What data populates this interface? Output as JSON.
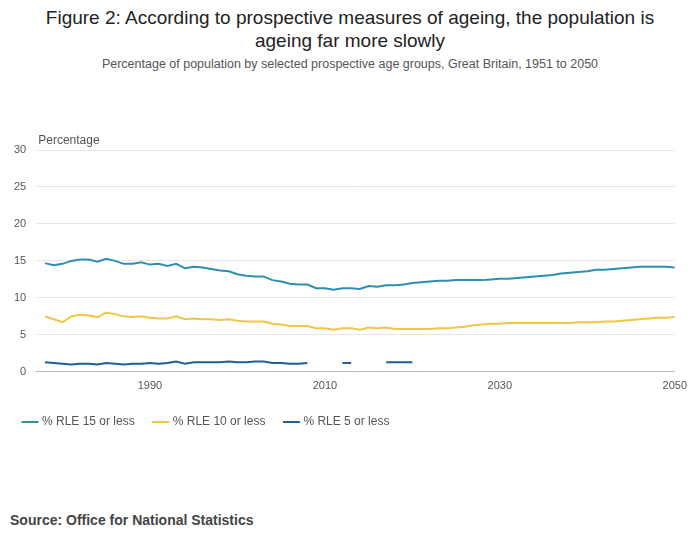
{
  "chart_data": {
    "type": "line",
    "title": "Figure 2: According to prospective measures of ageing, the population is ageing far more slowly",
    "subtitle": "Percentage of population by selected prospective age groups, Great Britain, 1951 to 2050",
    "ylabel": "Percentage",
    "source": "Source: Office for National Statistics",
    "x": [
      1978,
      1979,
      1980,
      1981,
      1982,
      1983,
      1984,
      1985,
      1986,
      1987,
      1988,
      1989,
      1990,
      1991,
      1992,
      1993,
      1994,
      1995,
      1996,
      1997,
      1998,
      1999,
      2000,
      2001,
      2002,
      2003,
      2004,
      2005,
      2006,
      2007,
      2008,
      2009,
      2010,
      2011,
      2012,
      2013,
      2014,
      2015,
      2016,
      2017,
      2018,
      2019,
      2020,
      2021,
      2022,
      2023,
      2024,
      2025,
      2026,
      2027,
      2028,
      2029,
      2030,
      2031,
      2032,
      2033,
      2034,
      2035,
      2036,
      2037,
      2038,
      2039,
      2040,
      2041,
      2042,
      2043,
      2044,
      2045,
      2046,
      2047,
      2048,
      2049,
      2050
    ],
    "series": [
      {
        "name": "% RLE 15 or less",
        "color": "#2e8fae",
        "values": [
          14.7,
          14.4,
          14.6,
          15.0,
          15.2,
          15.2,
          14.9,
          15.3,
          15.0,
          14.6,
          14.6,
          14.8,
          14.5,
          14.6,
          14.3,
          14.6,
          14.0,
          14.2,
          14.1,
          13.9,
          13.7,
          13.6,
          13.2,
          13.0,
          12.9,
          12.9,
          12.4,
          12.2,
          11.9,
          11.8,
          11.8,
          11.3,
          11.3,
          11.1,
          11.3,
          11.3,
          11.2,
          11.6,
          11.5,
          11.7,
          11.7,
          11.8,
          12.0,
          12.1,
          12.2,
          12.3,
          12.3,
          12.4,
          12.4,
          12.4,
          12.4,
          12.5,
          12.6,
          12.6,
          12.7,
          12.8,
          12.9,
          13.0,
          13.1,
          13.3,
          13.4,
          13.5,
          13.6,
          13.8,
          13.8,
          13.9,
          14.0,
          14.1,
          14.2,
          14.2,
          14.2,
          14.2,
          14.1
        ]
      },
      {
        "name": "% RLE 10 or less",
        "color": "#f1c644",
        "values": [
          7.5,
          7.1,
          6.7,
          7.5,
          7.7,
          7.6,
          7.4,
          8.0,
          7.8,
          7.5,
          7.4,
          7.5,
          7.3,
          7.2,
          7.2,
          7.5,
          7.1,
          7.2,
          7.1,
          7.1,
          7.0,
          7.1,
          6.9,
          6.8,
          6.8,
          6.8,
          6.5,
          6.4,
          6.2,
          6.2,
          6.2,
          5.9,
          5.9,
          5.7,
          5.9,
          5.9,
          5.7,
          6.0,
          5.9,
          6.0,
          5.8,
          5.8,
          5.8,
          5.8,
          5.8,
          5.9,
          5.9,
          6.0,
          6.1,
          6.3,
          6.4,
          6.5,
          6.5,
          6.6,
          6.6,
          6.6,
          6.6,
          6.6,
          6.6,
          6.6,
          6.6,
          6.7,
          6.7,
          6.7,
          6.8,
          6.8,
          6.9,
          7.0,
          7.1,
          7.2,
          7.3,
          7.3,
          7.4
        ]
      },
      {
        "name": "% RLE 5 or less",
        "color": "#206095",
        "values": [
          1.3,
          1.2,
          1.1,
          1.0,
          1.1,
          1.1,
          1.0,
          1.2,
          1.1,
          1.0,
          1.1,
          1.1,
          1.2,
          1.1,
          1.2,
          1.4,
          1.1,
          1.3,
          1.3,
          1.3,
          1.3,
          1.4,
          1.3,
          1.3,
          1.4,
          1.4,
          1.2,
          1.2,
          1.1,
          1.1,
          1.2,
          null,
          null,
          null,
          1.2,
          1.2,
          null,
          null,
          null,
          1.3,
          1.3,
          1.3,
          1.3,
          null,
          null,
          null,
          null,
          null,
          null,
          null,
          null,
          null,
          null,
          null,
          null,
          null,
          null,
          null,
          null,
          null,
          null,
          null,
          null,
          null,
          null,
          null,
          null,
          null,
          null,
          null,
          null,
          null,
          null
        ]
      }
    ],
    "xlim": [
      1977,
      2050
    ],
    "xticks": [
      1990,
      2010,
      2030,
      2050
    ],
    "ylim": [
      0,
      30
    ],
    "yticks": [
      0,
      5,
      10,
      15,
      20,
      25,
      30
    ],
    "grid": true,
    "legend": "bottom-left"
  }
}
